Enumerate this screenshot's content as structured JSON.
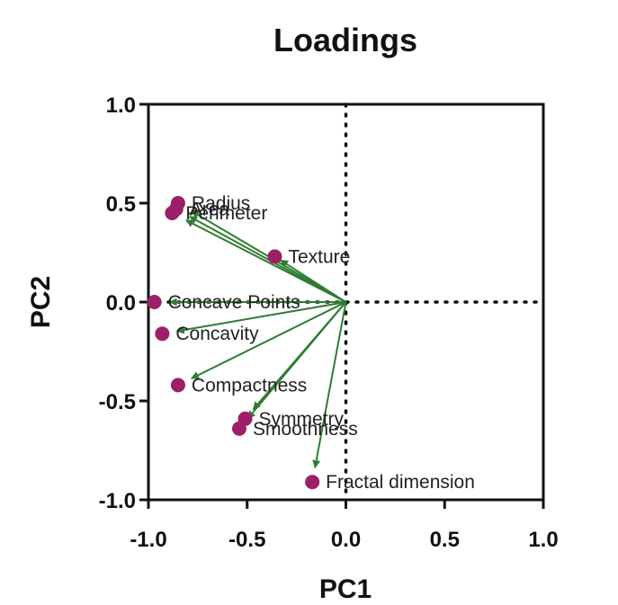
{
  "chart_data": {
    "type": "scatter",
    "title": "Loadings",
    "xlabel": "PC1",
    "ylabel": "PC2",
    "xlim": [
      -1.0,
      1.0
    ],
    "ylim": [
      -1.0,
      1.0
    ],
    "x_ticks": [
      "-1.0",
      "-0.5",
      "0.0",
      "0.5",
      "1.0"
    ],
    "y_ticks": [
      "1.0",
      "0.5",
      "0.0",
      "-0.5",
      "-1.0"
    ],
    "x_tick_values": [
      -1.0,
      -0.5,
      0.0,
      0.5,
      1.0
    ],
    "y_tick_values": [
      1.0,
      0.5,
      0.0,
      -0.5,
      -1.0
    ],
    "reference_lines": "dotted at x=0 and y=0",
    "grid": false,
    "legend": "none",
    "marker_color": "#9c1f68",
    "arrow_color": "#2e7d32",
    "points": [
      {
        "label": "Radius",
        "x": -0.85,
        "y": 0.5
      },
      {
        "label": "Area",
        "x": -0.86,
        "y": 0.47
      },
      {
        "label": "Perimeter",
        "x": -0.88,
        "y": 0.45
      },
      {
        "label": "Texture",
        "x": -0.36,
        "y": 0.23
      },
      {
        "label": "Concave Points",
        "x": -0.97,
        "y": 0.0
      },
      {
        "label": "Concavity",
        "x": -0.93,
        "y": -0.16
      },
      {
        "label": "Compactness",
        "x": -0.85,
        "y": -0.42
      },
      {
        "label": "Symmetry",
        "x": -0.51,
        "y": -0.59
      },
      {
        "label": "Smoothness",
        "x": -0.54,
        "y": -0.64
      },
      {
        "label": "Fractal dimension",
        "x": -0.17,
        "y": -0.91
      }
    ]
  }
}
